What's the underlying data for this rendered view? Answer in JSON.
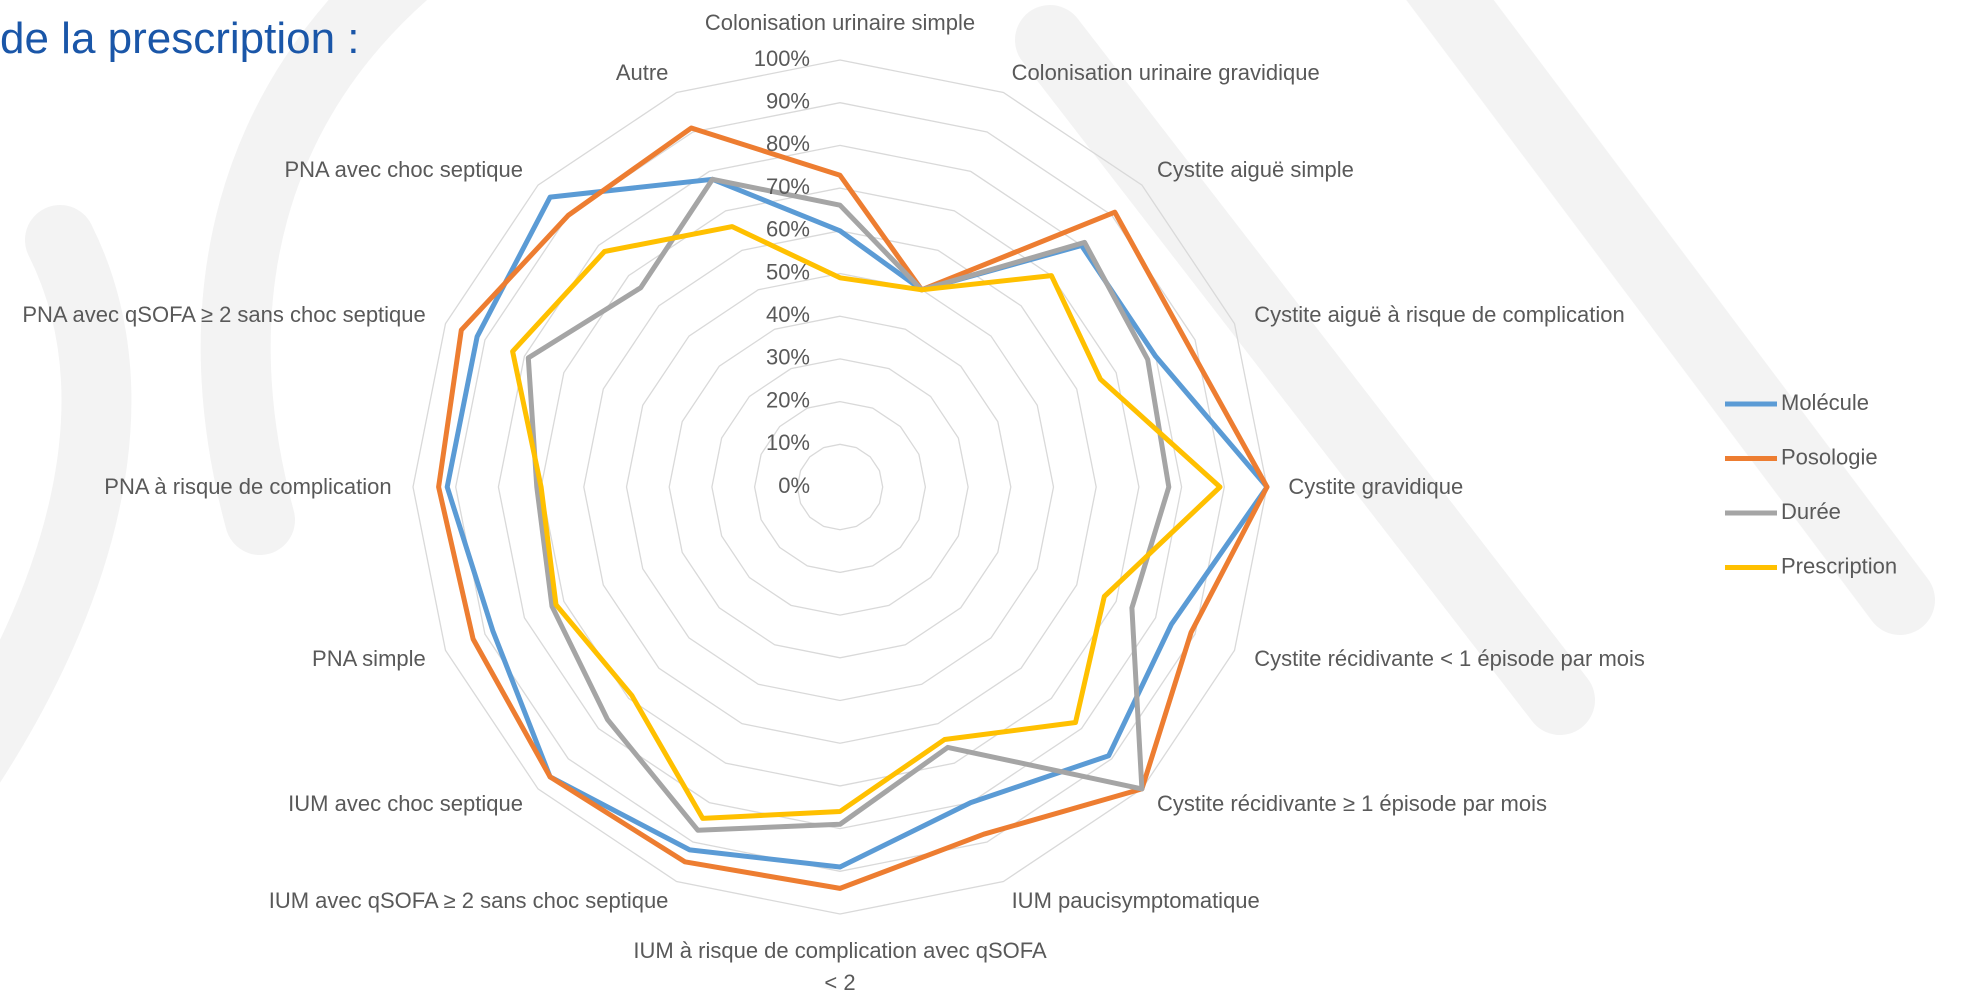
{
  "title": "de la prescription :",
  "chart_data": {
    "type": "radar",
    "categories": [
      "Colonisation urinaire simple",
      "Colonisation urinaire gravidique",
      "Cystite aiguë simple",
      "Cystite aiguë à risque de complication",
      "Cystite gravidique",
      "Cystite récidivante < 1 épisode par mois",
      "Cystite récidivante ≥  1 épisode par mois",
      "IUM paucisymptomatique",
      "IUM à risque de complication avec qSOFA < 2",
      "IUM avec qSOFA ≥ 2 sans choc septique",
      "IUM avec choc septique",
      "PNA simple",
      "PNA à risque de complication",
      "PNA avec qSOFA ≥ 2 sans choc septique",
      "PNA avec choc septique",
      "Autre"
    ],
    "series": [
      {
        "name": "Molécule",
        "color": "#5b9bd5",
        "values": [
          60,
          50,
          80,
          80,
          100,
          84,
          89,
          80,
          89,
          92,
          96,
          88,
          92,
          92,
          96,
          78
        ]
      },
      {
        "name": "Posologie",
        "color": "#ed7d31",
        "values": [
          73,
          50,
          91,
          88,
          100,
          89,
          100,
          88,
          94,
          95,
          96,
          93,
          94,
          96,
          90,
          91
        ]
      },
      {
        "name": "Durée",
        "color": "#a5a5a5",
        "values": [
          66,
          50,
          81,
          78,
          77,
          74,
          100,
          66,
          79,
          87,
          77,
          73,
          71,
          79,
          66,
          78
        ]
      },
      {
        "name": "Prescription",
        "color": "#ffc000",
        "values": [
          49,
          50,
          70,
          66,
          89,
          67,
          78,
          64,
          76,
          84,
          69,
          72,
          70,
          83,
          78,
          66
        ]
      }
    ],
    "rlim": [
      0,
      100
    ],
    "rticks": [
      {
        "value": 0,
        "label": "0%"
      },
      {
        "value": 10,
        "label": "10%"
      },
      {
        "value": 20,
        "label": "20%"
      },
      {
        "value": 30,
        "label": "30%"
      },
      {
        "value": 40,
        "label": "40%"
      },
      {
        "value": 50,
        "label": "50%"
      },
      {
        "value": 60,
        "label": "60%"
      },
      {
        "value": 70,
        "label": "70%"
      },
      {
        "value": 80,
        "label": "80%"
      },
      {
        "value": 90,
        "label": "90%"
      },
      {
        "value": 100,
        "label": "100%"
      }
    ],
    "grid": true,
    "legend": "right"
  }
}
